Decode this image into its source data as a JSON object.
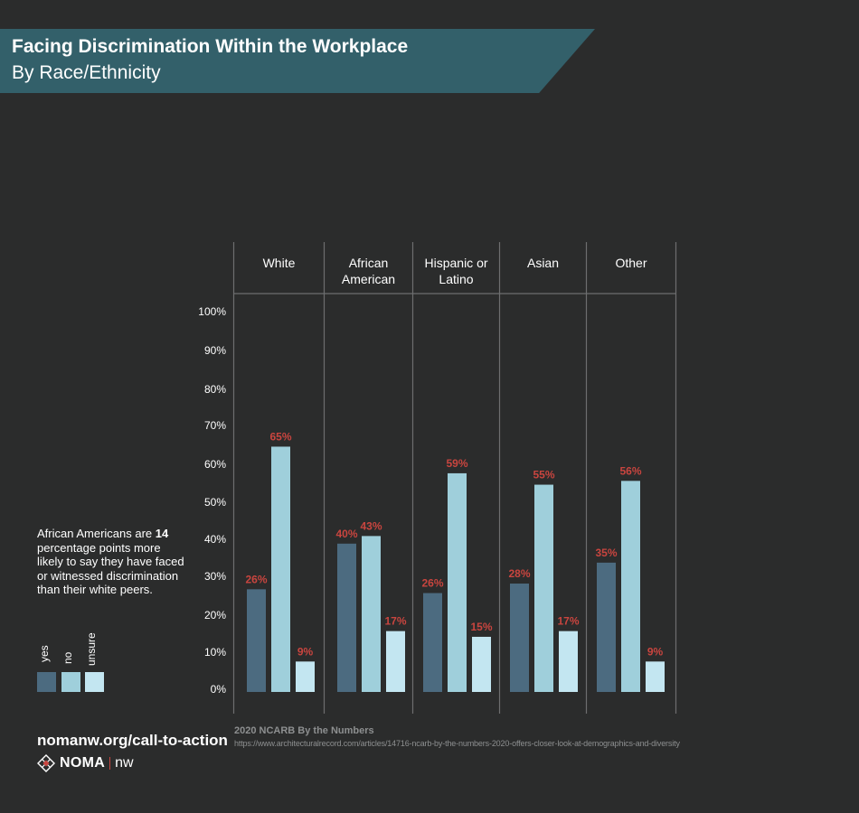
{
  "header": {
    "title": "Facing Discrimination Within the Workplace",
    "subtitle": "By Race/Ethnicity"
  },
  "note": {
    "text_before": "African Americans are ",
    "highlight": "14",
    "text_after": " percentage points more likely to say they have faced or witnessed discrimination than their white peers."
  },
  "legend": {
    "items": [
      {
        "label": "yes",
        "color": "#4c6b80"
      },
      {
        "label": "no",
        "color": "#9fcfdb"
      },
      {
        "label": "unsure",
        "color": "#c3e6f1"
      }
    ]
  },
  "footer": {
    "cta": "nomanw.org/call-to-action",
    "logo_text": "NOMA",
    "logo_suffix": "nw",
    "source_title": "2020 NCARB By the Numbers",
    "source_url": "https://www.architecturalrecord.com/articles/14716-ncarb-by-the-numbers-2020-offers-closer-look-at-demographics-and-diversity"
  },
  "chart_data": {
    "type": "bar",
    "categories": [
      "White",
      "African American",
      "Hispanic or Latino",
      "Asian",
      "Other"
    ],
    "category_lines": [
      [
        "White"
      ],
      [
        "African",
        "American"
      ],
      [
        "Hispanic or",
        "Latino"
      ],
      [
        "Asian"
      ],
      [
        "Other"
      ]
    ],
    "series": [
      {
        "name": "yes",
        "values": [
          26,
          40,
          26,
          28,
          35
        ]
      },
      {
        "name": "no",
        "values": [
          65,
          43,
          59,
          55,
          56
        ]
      },
      {
        "name": "unsure",
        "values": [
          9,
          17,
          15,
          17,
          9
        ]
      }
    ],
    "bar_values": [
      [
        27,
        39,
        26,
        28.5,
        34
      ],
      [
        64.5,
        41,
        57.5,
        54.5,
        55.5
      ],
      [
        8,
        16,
        14.5,
        16,
        8
      ]
    ],
    "value_labels": [
      [
        "26%",
        "40%",
        "26%",
        "28%",
        "35%"
      ],
      [
        "65%",
        "43%",
        "59%",
        "55%",
        "56%"
      ],
      [
        "9%",
        "17%",
        "15%",
        "17%",
        "9%"
      ]
    ],
    "yticks": [
      {
        "label": "100%",
        "value": 100
      },
      {
        "label": "90%",
        "value": 90
      },
      {
        "label": "80%",
        "value": 80
      },
      {
        "label": "70%",
        "value": 70
      },
      {
        "label": "60%",
        "value": 60
      },
      {
        "label": "50%",
        "value": 50
      },
      {
        "label": "40%",
        "value": 40
      },
      {
        "label": "30%",
        "value": 30
      },
      {
        "label": "20%",
        "value": 20
      },
      {
        "label": "10%",
        "value": 10
      },
      {
        "label": "0%",
        "value": 0
      }
    ],
    "ylim": [
      0,
      100
    ],
    "value_label_color": "#c9453f",
    "grid": false,
    "legend_position": "left"
  }
}
